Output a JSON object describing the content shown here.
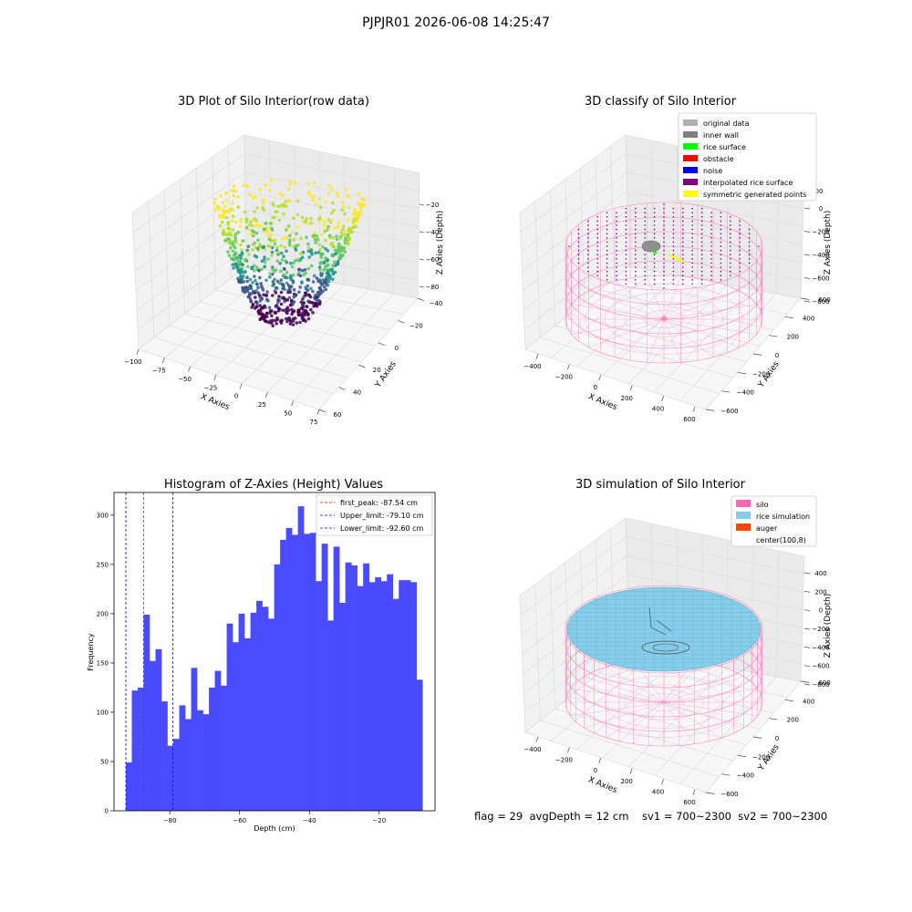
{
  "suptitle": "PJPJR01 2026-06-08 14:25:47",
  "panel_raw": {
    "title": "3D Plot of Silo Interior(row data)",
    "xlabel": "X Axies",
    "ylabel": "Y Axies",
    "zlabel": "Z Axies (Depth)",
    "x_ticks": [
      "−100",
      "−75",
      "−50",
      "−25",
      "0",
      "25",
      "50",
      "75"
    ],
    "y_ticks": [
      "−40",
      "−20",
      "0",
      "20",
      "40",
      "60"
    ],
    "z_ticks": [
      "−20",
      "−40",
      "−60",
      "−80"
    ]
  },
  "panel_classify": {
    "title": "3D classify of Silo Interior",
    "xlabel": "X Axies",
    "ylabel": "Y Axies",
    "zlabel": "Z Axies (Depth)",
    "x_ticks": [
      "−400",
      "−200",
      "0",
      "200",
      "400",
      "600"
    ],
    "y_ticks": [
      "−600",
      "−400",
      "−200",
      "0",
      "200",
      "400",
      "600"
    ],
    "z_ticks": [
      "200",
      "0",
      "−200",
      "−400",
      "−600",
      "−800"
    ],
    "z_top_partial": "00",
    "legend": [
      {
        "label": "original data",
        "color": "#b0b0b0"
      },
      {
        "label": "inner wall",
        "color": "#808080"
      },
      {
        "label": "rice surface",
        "color": "#00ff00"
      },
      {
        "label": "obstacle",
        "color": "#ff0000"
      },
      {
        "label": "noise",
        "color": "#0000ff"
      },
      {
        "label": "interpolated rice surface",
        "color": "#800080"
      },
      {
        "label": "symmetric generated points",
        "color": "#ffff00"
      }
    ]
  },
  "panel_sim": {
    "title": "3D simulation of Silo Interior",
    "xlabel": "X Axies",
    "ylabel": "Y Axies",
    "zlabel": "Z Axies (Depth)",
    "x_ticks": [
      "−400",
      "−200",
      "0",
      "200",
      "400",
      "600"
    ],
    "y_ticks": [
      "−600",
      "−400",
      "−200",
      "0",
      "200",
      "400",
      "600"
    ],
    "z_ticks": [
      "400",
      "200",
      "0",
      "−200",
      "−400",
      "−600",
      "−800"
    ],
    "legend": [
      {
        "label": "silo",
        "color": "#ff69b4"
      },
      {
        "label": "rice simulation",
        "color": "#87ceeb"
      },
      {
        "label": "auger",
        "color": "#ff4500"
      },
      {
        "label": "center(100,8)",
        "color": "#ffffff"
      }
    ]
  },
  "footer": {
    "text": "flag = 29  avgDepth = 12 cm    sv1 = 700~2300  sv2 = 700~2300"
  },
  "chart_data": {
    "type": "bar",
    "title": "Histogram of Z-Axies (Height) Values",
    "xlabel": "Depth (cm)",
    "ylabel": "Frequency",
    "xlim": [
      -96,
      -4
    ],
    "ylim": [
      0,
      323
    ],
    "x_ticks": [
      -80,
      -60,
      -40,
      -20
    ],
    "x_tick_labels": [
      "−80",
      "−60",
      "−40",
      "−20"
    ],
    "y_ticks": [
      0,
      50,
      100,
      150,
      200,
      250,
      300
    ],
    "bar_color": "#4a4aff",
    "bin_start": -92.6,
    "bin_width": 1.7,
    "values": [
      49,
      122,
      125,
      199,
      152,
      164,
      111,
      66,
      73,
      107,
      93,
      145,
      102,
      98,
      125,
      142,
      127,
      190,
      171,
      200,
      175,
      201,
      213,
      207,
      195,
      250,
      275,
      287,
      280,
      309,
      281,
      282,
      233,
      271,
      193,
      268,
      211,
      252,
      249,
      228,
      251,
      232,
      237,
      233,
      240,
      215,
      234,
      234,
      232,
      133
    ],
    "vlines": [
      {
        "label": "first_peak: -87.54 cm",
        "x": -87.54,
        "color": "#ff0000"
      },
      {
        "label": "Upper_limit: -79.10 cm",
        "x": -79.1,
        "color": "#0000ff"
      },
      {
        "label": "Lower_limit: -92.60 cm",
        "x": -92.6,
        "color": "#0000ff"
      }
    ]
  }
}
